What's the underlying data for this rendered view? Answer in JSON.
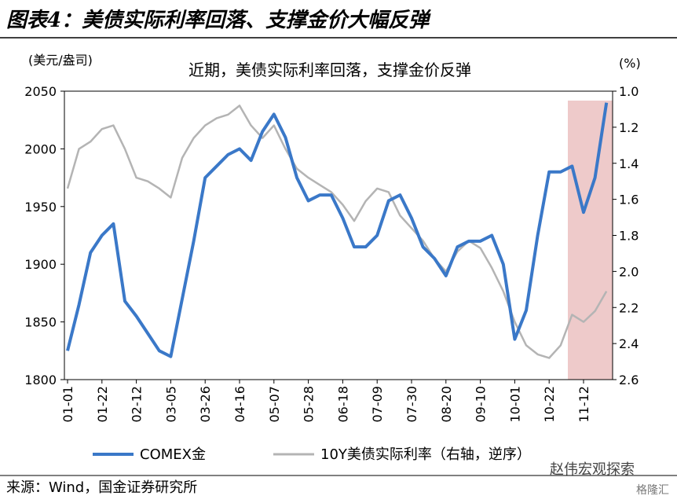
{
  "header": {
    "title": "图表4：美债实际利率回落、支撑金价大幅反弹"
  },
  "chart_data": {
    "type": "line",
    "title": "近期，美债实际利率回落，支撑金价反弹",
    "y_label": "(美元/盎司)",
    "y2_label": "(%)",
    "categories": [
      "01-01",
      null,
      null,
      "01-22",
      null,
      null,
      "02-12",
      null,
      null,
      "03-05",
      null,
      null,
      "03-26",
      null,
      null,
      "04-16",
      null,
      null,
      "05-07",
      null,
      null,
      "05-28",
      null,
      null,
      "06-18",
      null,
      null,
      "07-09",
      null,
      null,
      "07-30",
      null,
      null,
      "08-20",
      null,
      null,
      "09-10",
      null,
      null,
      "10-01",
      null,
      null,
      "10-22",
      null,
      null,
      "11-12",
      null,
      null
    ],
    "ylim": [
      1800,
      2050
    ],
    "yticks": [
      1800,
      1850,
      1900,
      1950,
      2000,
      2050
    ],
    "y2lim": [
      2.6,
      1.0
    ],
    "y2ticks": [
      {
        "value": 1,
        "label": "1.0"
      },
      1.2,
      1.4,
      1.6,
      1.8,
      {
        "value": 2,
        "label": "2.0"
      },
      2.2,
      2.4,
      2.6
    ],
    "legend": "bottom",
    "series": [
      {
        "name": "COMEX金",
        "color": "#3a78c8",
        "values": [
          1825,
          1865,
          1910,
          1925,
          1935,
          1868,
          1855,
          1840,
          1825,
          1820,
          1870,
          1920,
          1975,
          1985,
          1995,
          2000,
          1990,
          2015,
          2030,
          2010,
          1975,
          1955,
          1960,
          1960,
          1940,
          1915,
          1915,
          1925,
          1955,
          1960,
          1940,
          1915,
          1905,
          1890,
          1915,
          1920,
          1920,
          1925,
          1900,
          1835,
          1860,
          1925,
          1980,
          1980,
          1985,
          1945,
          1975,
          2040
        ]
      },
      {
        "name": "10Y美债实际利率（右轴，逆序）",
        "color": "#b4b4b4",
        "axis": "y2",
        "values": [
          1.54,
          1.32,
          1.28,
          1.21,
          1.19,
          1.32,
          1.48,
          1.5,
          1.54,
          1.59,
          1.37,
          1.26,
          1.19,
          1.15,
          1.13,
          1.08,
          1.19,
          1.26,
          1.19,
          1.32,
          1.43,
          1.48,
          1.52,
          1.56,
          1.63,
          1.72,
          1.61,
          1.54,
          1.56,
          1.69,
          1.76,
          1.83,
          1.93,
          2.0,
          1.89,
          1.83,
          1.87,
          1.98,
          2.11,
          2.28,
          2.41,
          2.46,
          2.48,
          2.41,
          2.24,
          2.28,
          2.22,
          2.11
        ]
      }
    ]
  },
  "footer": {
    "source": "来源：Wind，国金证券研究所",
    "watermark": "赵伟宏观探索",
    "logo": "格隆汇"
  }
}
